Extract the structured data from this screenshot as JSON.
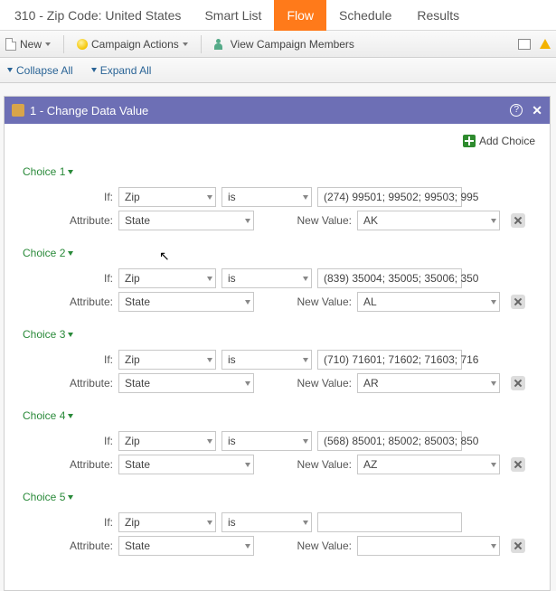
{
  "header": {
    "title": "310 - Zip Code: United States",
    "tabs": [
      "Smart List",
      "Flow",
      "Schedule",
      "Results"
    ],
    "activeTabIndex": 1
  },
  "toolbar": {
    "new_label": "New",
    "campaign_actions_label": "Campaign Actions",
    "view_members_label": "View Campaign Members"
  },
  "collapse": {
    "collapse_label": "Collapse All",
    "expand_label": "Expand All"
  },
  "card": {
    "title": "1 - Change Data Value",
    "add_choice_label": "Add Choice"
  },
  "labels": {
    "if": "If:",
    "attribute": "Attribute:",
    "newvalue": "New Value:"
  },
  "choices": [
    {
      "name": "Choice 1",
      "if_field": "Zip",
      "op": "is",
      "values": "(274) 99501; 99502; 99503; 995",
      "attr": "State",
      "newval": "AK"
    },
    {
      "name": "Choice 2",
      "if_field": "Zip",
      "op": "is",
      "values": "(839) 35004; 35005; 35006; 350",
      "attr": "State",
      "newval": "AL"
    },
    {
      "name": "Choice 3",
      "if_field": "Zip",
      "op": "is",
      "values": "(710) 71601; 71602; 71603; 716",
      "attr": "State",
      "newval": "AR"
    },
    {
      "name": "Choice 4",
      "if_field": "Zip",
      "op": "is",
      "values": "(568) 85001; 85002; 85003; 850",
      "attr": "State",
      "newval": "AZ"
    },
    {
      "name": "Choice 5",
      "if_field": "Zip",
      "op": "is",
      "values": "",
      "attr": "State",
      "newval": ""
    }
  ],
  "colors": {
    "tab_active_bg": "#ff7a1a",
    "card_head_bg": "#6d6fb5",
    "choice_green": "#2a8a3a",
    "link_blue": "#2a6496"
  }
}
